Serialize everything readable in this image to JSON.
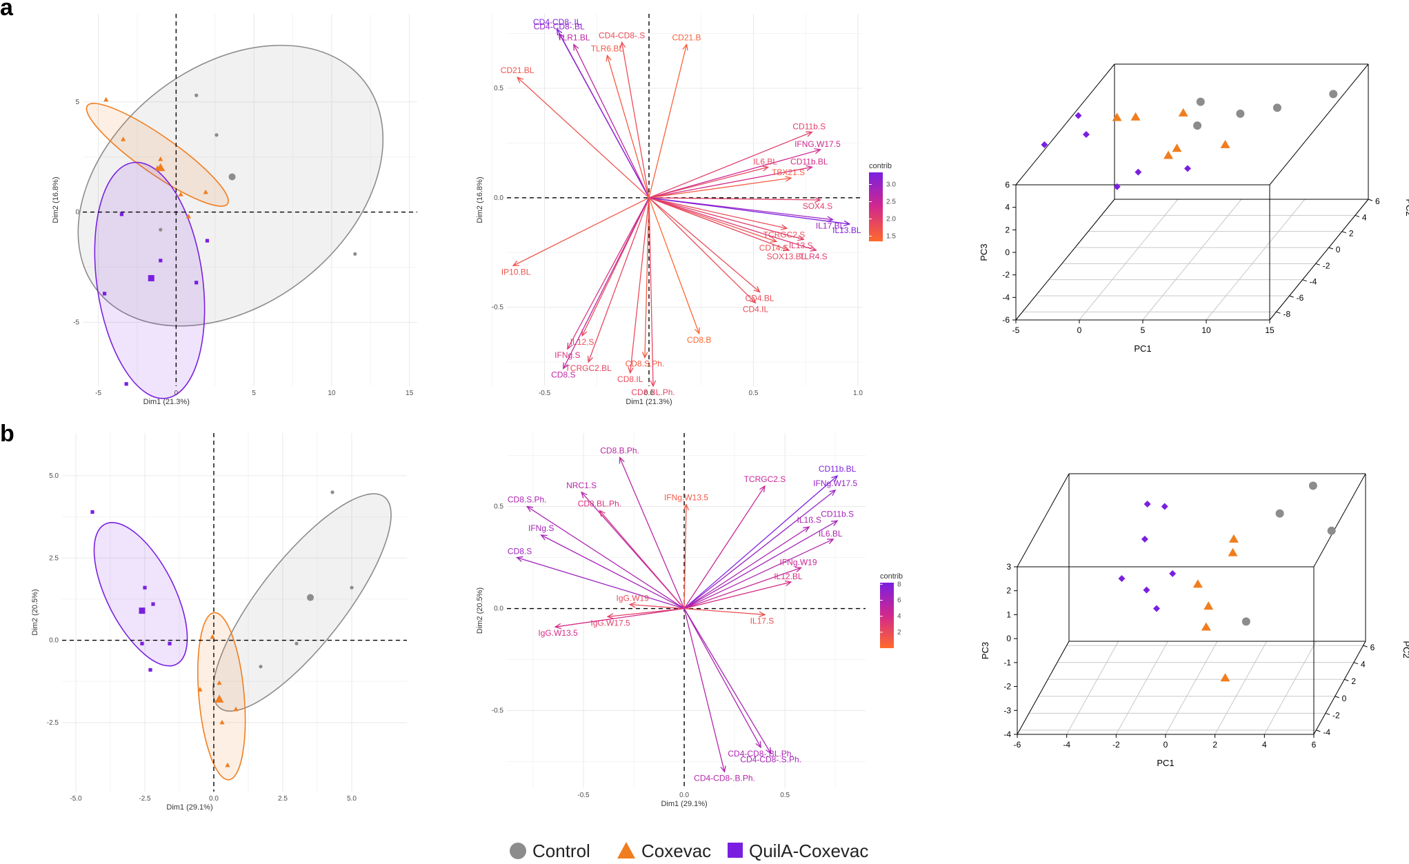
{
  "panel_labels": [
    "a",
    "b"
  ],
  "legend": {
    "items": [
      {
        "label": "Control",
        "color": "#8c8c8c",
        "shape": "circle"
      },
      {
        "label": "Coxevac",
        "color": "#f07d1e",
        "shape": "triangle"
      },
      {
        "label": "QuilA-Coxevac",
        "color": "#7a1fe0",
        "shape": "square"
      }
    ]
  },
  "colors": {
    "control": "#8c8c8c",
    "coxevac": "#f07d1e",
    "quila": "#7a1fe0",
    "contrib_low": "#ff6a2b",
    "contrib_high": "#7a1fe0"
  },
  "chart_data": [
    {
      "id": "a_individuals",
      "type": "scatter",
      "title": "",
      "xlabel": "Dim1 (21.3%)",
      "ylabel": "Dim2 (16.8%)",
      "xlim": [
        -6,
        15.5
      ],
      "ylim": [
        -7.9,
        9.0
      ],
      "xticks": [
        -5,
        0,
        5,
        10,
        15
      ],
      "yticks": [
        -5,
        0,
        5
      ],
      "xtick_labels": [
        "-5",
        "0",
        "5",
        "10",
        "15"
      ],
      "ytick_labels": [
        "-5",
        "0",
        "5"
      ],
      "grid": true,
      "series": [
        {
          "name": "Control",
          "marker": "circle",
          "points": [
            [
              1.3,
              5.3
            ],
            [
              2.6,
              3.5
            ],
            [
              3.6,
              1.6
            ],
            [
              -1,
              -0.8
            ],
            [
              1.3,
              -3.2
            ],
            [
              11.5,
              -1.9
            ]
          ],
          "centroid": [
            3.6,
            1.6
          ],
          "ellipse": {
            "cx": 3.5,
            "cy": 1.2,
            "rx": 10.9,
            "ry": 5.4,
            "angle_deg": 38
          }
        },
        {
          "name": "Coxevac",
          "marker": "triangle",
          "points": [
            [
              -4.5,
              5.1
            ],
            [
              -3.4,
              3.3
            ],
            [
              -1,
              2.4
            ],
            [
              -1.2,
              2
            ],
            [
              0.3,
              0.8
            ],
            [
              1.9,
              0.9
            ],
            [
              0.8,
              -0.2
            ]
          ],
          "centroid": [
            -1,
            2
          ],
          "ellipse": {
            "cx": -1.2,
            "cy": 2.6,
            "rx": 5.5,
            "ry": 0.85,
            "angle_deg": -35
          }
        },
        {
          "name": "QuilA-Coxevac",
          "marker": "square",
          "points": [
            [
              -3.5,
              -0.1
            ],
            [
              -1,
              -2.2
            ],
            [
              -1.6,
              -3
            ],
            [
              1.3,
              -3.2
            ],
            [
              2,
              -1.3
            ],
            [
              -4.6,
              -3.7
            ],
            [
              -3.2,
              -7.8
            ]
          ],
          "centroid": [
            -1.6,
            -3
          ],
          "ellipse": {
            "cx": -1.7,
            "cy": -3.1,
            "rx": 3.4,
            "ry": 5.4,
            "angle_deg": 8
          }
        }
      ]
    },
    {
      "id": "a_variables",
      "type": "biplot",
      "title": "",
      "xlabel": "Dim1 (21.3%)",
      "ylabel": "Dim2 (16.8%)",
      "xlim": [
        -0.68,
        1.02
      ],
      "ylim": [
        -0.86,
        0.84
      ],
      "xticks": [
        -0.5,
        0,
        0.5,
        1.0
      ],
      "yticks": [
        -0.5,
        0,
        0.5
      ],
      "xtick_labels": [
        "-0.5",
        "0.0",
        "0.5",
        "1.0"
      ],
      "ytick_labels": [
        "-0.5",
        "0.0",
        "0.5"
      ],
      "legend_title": "contrib",
      "legend_ticks": [
        3.0,
        2.5,
        2.0,
        1.5
      ],
      "legend_tick_labels": [
        "3.0",
        "2.5",
        "2.0",
        "1.5"
      ],
      "contrib_range": [
        1.35,
        3.35
      ],
      "vectors": [
        {
          "label": "CD4-CD8-.IL",
          "x": -0.44,
          "y": 0.77,
          "contrib": 3.3
        },
        {
          "label": "CD4-CD8-.BL",
          "x": -0.43,
          "y": 0.75,
          "contrib": 3.1
        },
        {
          "label": "TLR1.BL",
          "x": -0.36,
          "y": 0.7,
          "contrib": 2.6
        },
        {
          "label": "CD4-CD8-.S",
          "x": -0.13,
          "y": 0.71,
          "contrib": 1.8
        },
        {
          "label": "TLR6.BL",
          "x": -0.2,
          "y": 0.65,
          "contrib": 1.6
        },
        {
          "label": "CD21.B",
          "x": 0.18,
          "y": 0.7,
          "contrib": 1.5
        },
        {
          "label": "CD21.BL",
          "x": -0.63,
          "y": 0.55,
          "contrib": 1.7
        },
        {
          "label": "CD11b.S",
          "x": 0.78,
          "y": 0.3,
          "contrib": 2.0
        },
        {
          "label": "IFNG.W17.5",
          "x": 0.82,
          "y": 0.22,
          "contrib": 2.4
        },
        {
          "label": "IL6.BL",
          "x": 0.57,
          "y": 0.14,
          "contrib": 1.9
        },
        {
          "label": "CD11b.BL",
          "x": 0.78,
          "y": 0.14,
          "contrib": 2.3
        },
        {
          "label": "TBX21.S",
          "x": 0.68,
          "y": 0.09,
          "contrib": 1.6
        },
        {
          "label": "SOX4.S",
          "x": 0.82,
          "y": -0.01,
          "contrib": 2.0
        },
        {
          "label": "IL17.BL",
          "x": 0.88,
          "y": -0.1,
          "contrib": 3.0
        },
        {
          "label": "IL13.BL",
          "x": 0.96,
          "y": -0.12,
          "contrib": 3.3
        },
        {
          "label": "TCRGC2.S",
          "x": 0.66,
          "y": -0.14,
          "contrib": 1.8
        },
        {
          "label": "IL13.S",
          "x": 0.74,
          "y": -0.19,
          "contrib": 2.0
        },
        {
          "label": "CD14.S",
          "x": 0.61,
          "y": -0.2,
          "contrib": 1.7
        },
        {
          "label": "SOX13.BL",
          "x": 0.67,
          "y": -0.24,
          "contrib": 1.9
        },
        {
          "label": "TLR4.S",
          "x": 0.8,
          "y": -0.24,
          "contrib": 2.1
        },
        {
          "label": "CD4.BL",
          "x": 0.53,
          "y": -0.43,
          "contrib": 1.8
        },
        {
          "label": "CD4.IL",
          "x": 0.51,
          "y": -0.48,
          "contrib": 1.8
        },
        {
          "label": "CD8.B",
          "x": 0.24,
          "y": -0.62,
          "contrib": 1.4
        },
        {
          "label": "IP10.BL",
          "x": -0.65,
          "y": -0.31,
          "contrib": 1.7
        },
        {
          "label": "IL12.S",
          "x": -0.32,
          "y": -0.63,
          "contrib": 1.8
        },
        {
          "label": "IFNg.S",
          "x": -0.39,
          "y": -0.69,
          "contrib": 2.2
        },
        {
          "label": "TCRGC2.BL",
          "x": -0.29,
          "y": -0.75,
          "contrib": 1.9
        },
        {
          "label": "CD8.S",
          "x": -0.41,
          "y": -0.78,
          "contrib": 2.6
        },
        {
          "label": "CD8.IL",
          "x": -0.09,
          "y": -0.8,
          "contrib": 1.8
        },
        {
          "label": "CD8.S.Ph.",
          "x": -0.02,
          "y": -0.73,
          "contrib": 1.6
        },
        {
          "label": "CD8.BL.Ph.",
          "x": 0.02,
          "y": -0.86,
          "contrib": 1.9
        }
      ]
    },
    {
      "id": "a_pca3d",
      "type": "scatter3d",
      "xlabel": "PC1",
      "ylabel": "PC2",
      "zlabel": "PC3",
      "xticks": [
        -5,
        0,
        5,
        10,
        15
      ],
      "yticks": [
        -8,
        -6,
        -4,
        -2,
        0,
        2,
        4,
        6
      ],
      "zticks": [
        -6,
        -4,
        -2,
        0,
        2,
        4,
        6
      ],
      "xtick_labels": [
        "-5",
        "0",
        "5",
        "10",
        "15"
      ],
      "ytick_labels": [
        "-8",
        "-6",
        "-4",
        "-2",
        "0",
        "2",
        "4",
        "6"
      ],
      "ztick_labels": [
        "-6",
        "-4",
        "-2",
        "0",
        "2",
        "4",
        "6"
      ],
      "xlim": [
        -5,
        15
      ],
      "ylim": [
        -9,
        6
      ],
      "zlim": [
        -6,
        6
      ],
      "series": [
        {
          "name": "Control",
          "points": [
            [
              3.7,
              2.3,
              5.3
            ],
            [
              3.6,
              2.0,
              3.4
            ],
            [
              6.0,
              3.9,
              3.1
            ],
            [
              12.5,
              5.5,
              3.7
            ],
            [
              8.6,
              4.5,
              3.2
            ]
          ]
        },
        {
          "name": "Coxevac",
          "points": [
            [
              -1.8,
              0.2,
              5.4
            ],
            [
              -0.8,
              1.1,
              4.8
            ],
            [
              2.7,
              1.6,
              4.8
            ],
            [
              2.3,
              1.4,
              1.8
            ],
            [
              2.3,
              0.1,
              2.1
            ],
            [
              5.8,
              2.0,
              1.7
            ]
          ]
        },
        {
          "name": "QuilA-Coxevac",
          "points": [
            [
              -4.9,
              0.3,
              5.5
            ],
            [
              -3.5,
              -1.2,
              4.9
            ],
            [
              -7.0,
              -0.8,
              3.7
            ],
            [
              -0.6,
              -2.1,
              0.9
            ],
            [
              0.7,
              -1.4,
              1.7
            ],
            [
              4.8,
              -1.8,
              2.3
            ]
          ]
        }
      ]
    },
    {
      "id": "b_individuals",
      "type": "scatter",
      "title": "",
      "xlabel": "Dim1 (29.1%)",
      "ylabel": "Dim2 (20.5%)",
      "xlim": [
        -5.5,
        7.0
      ],
      "ylim": [
        -4.6,
        6.3
      ],
      "xticks": [
        -5,
        -2.5,
        0,
        2.5,
        5
      ],
      "yticks": [
        -2.5,
        0,
        2.5,
        5
      ],
      "xtick_labels": [
        "-5.0",
        "-2.5",
        "0.0",
        "2.5",
        "5.0"
      ],
      "ytick_labels": [
        "-2.5",
        "0.0",
        "2.5",
        "5.0"
      ],
      "grid": true,
      "series": [
        {
          "name": "Control",
          "marker": "circle",
          "points": [
            [
              4.3,
              4.5
            ],
            [
              5.0,
              1.6
            ],
            [
              3.5,
              1.3
            ],
            [
              3.0,
              -0.1
            ],
            [
              1.7,
              -0.8
            ]
          ],
          "centroid": [
            3.5,
            1.3
          ],
          "ellipse": {
            "cx": 3.2,
            "cy": 1.15,
            "rx": 4.85,
            "ry": 1.3,
            "angle_deg": 52
          }
        },
        {
          "name": "Coxevac",
          "marker": "triangle",
          "points": [
            [
              -0.5,
              -1.5
            ],
            [
              0.2,
              -1.3
            ],
            [
              0.2,
              -1.8
            ],
            [
              0.8,
              -2.1
            ],
            [
              0.3,
              -2.5
            ],
            [
              0.5,
              -3.8
            ],
            [
              -0.05,
              0.1
            ]
          ],
          "centroid": [
            0.2,
            -1.8
          ],
          "ellipse": {
            "cx": 0.28,
            "cy": -1.7,
            "rx": 0.82,
            "ry": 2.55,
            "angle_deg": 5
          }
        },
        {
          "name": "QuilA-Coxevac",
          "marker": "square",
          "points": [
            [
              -4.4,
              3.9
            ],
            [
              -2.5,
              1.6
            ],
            [
              -2.2,
              1.1
            ],
            [
              -2.6,
              0.9
            ],
            [
              -2.6,
              -0.1
            ],
            [
              -1.6,
              -0.1
            ],
            [
              -2.3,
              -0.9
            ]
          ],
          "centroid": [
            -2.6,
            0.9
          ],
          "ellipse": {
            "cx": -2.65,
            "cy": 1.4,
            "rx": 2.85,
            "ry": 1.02,
            "angle_deg": -63
          }
        }
      ]
    },
    {
      "id": "b_variables",
      "type": "biplot",
      "title": "",
      "xlabel": "Dim1 (29.1%)",
      "ylabel": "Dim2 (20.5%)",
      "xlim": [
        -0.88,
        0.9
      ],
      "ylim": [
        -0.88,
        0.86
      ],
      "xticks": [
        -0.5,
        0,
        0.5
      ],
      "yticks": [
        -0.5,
        0,
        0.5
      ],
      "xtick_labels": [
        "-0.5",
        "0.0",
        "0.5"
      ],
      "ytick_labels": [
        "-0.5",
        "0.0",
        "0.5"
      ],
      "legend_title": "contrib",
      "legend_ticks": [
        8,
        6,
        4,
        2
      ],
      "legend_tick_labels": [
        "8",
        "6",
        "4",
        "2"
      ],
      "contrib_range": [
        0,
        8.2
      ],
      "vectors": [
        {
          "label": "CD8.B.Ph.",
          "x": -0.32,
          "y": 0.74,
          "contrib": 5.2
        },
        {
          "label": "NRC1.S",
          "x": -0.51,
          "y": 0.57,
          "contrib": 5.5
        },
        {
          "label": "CD8.S.Ph.",
          "x": -0.78,
          "y": 0.5,
          "contrib": 5.9
        },
        {
          "label": "CD8.BL.Ph.",
          "x": -0.42,
          "y": 0.48,
          "contrib": 3.6
        },
        {
          "label": "IFNg.S",
          "x": -0.71,
          "y": 0.36,
          "contrib": 6.2
        },
        {
          "label": "CD8.S",
          "x": -0.83,
          "y": 0.25,
          "contrib": 6.5
        },
        {
          "label": "IFNg.W13.5",
          "x": 0.01,
          "y": 0.51,
          "contrib": 1.2
        },
        {
          "label": "TCRGC2.S",
          "x": 0.4,
          "y": 0.6,
          "contrib": 4.7
        },
        {
          "label": "CD11b.BL",
          "x": 0.76,
          "y": 0.65,
          "contrib": 8.0
        },
        {
          "label": "IFNg.W17.5",
          "x": 0.75,
          "y": 0.58,
          "contrib": 6.9
        },
        {
          "label": "IL1ß.S",
          "x": 0.62,
          "y": 0.4,
          "contrib": 5.8
        },
        {
          "label": "CD11b.S",
          "x": 0.76,
          "y": 0.43,
          "contrib": 6.3
        },
        {
          "label": "IL6.BL",
          "x": 0.74,
          "y": 0.34,
          "contrib": 5.7
        },
        {
          "label": "IFNg.W19",
          "x": 0.58,
          "y": 0.2,
          "contrib": 4.6
        },
        {
          "label": "IL12.BL",
          "x": 0.53,
          "y": 0.13,
          "contrib": 3.8
        },
        {
          "label": "IL17.S",
          "x": 0.4,
          "y": -0.03,
          "contrib": 1.6
        },
        {
          "label": "IgG.W19",
          "x": -0.27,
          "y": 0.02,
          "contrib": 2.0
        },
        {
          "label": "IgG.W17.5",
          "x": -0.38,
          "y": -0.04,
          "contrib": 2.6
        },
        {
          "label": "IgG.W13.5",
          "x": -0.64,
          "y": -0.09,
          "contrib": 3.9
        },
        {
          "label": "CD4-CD8-.BL.Ph.",
          "x": 0.38,
          "y": -0.68,
          "contrib": 5.9
        },
        {
          "label": "CD4-CD8-.S.Ph.",
          "x": 0.43,
          "y": -0.71,
          "contrib": 6.1
        },
        {
          "label": "CD4-CD8-.B.Ph.",
          "x": 0.2,
          "y": -0.8,
          "contrib": 5.5
        }
      ]
    },
    {
      "id": "b_pca3d",
      "type": "scatter3d",
      "xlabel": "PC1",
      "ylabel": "PC2",
      "zlabel": "PC3",
      "xticks": [
        -6,
        -4,
        -2,
        0,
        2,
        4,
        6
      ],
      "yticks": [
        -4,
        -2,
        0,
        2,
        4,
        6
      ],
      "zticks": [
        -4,
        -3,
        -2,
        -1,
        0,
        1,
        2,
        3
      ],
      "xtick_labels": [
        "-6",
        "-4",
        "-2",
        "0",
        "2",
        "4",
        "6"
      ],
      "ytick_labels": [
        "-4",
        "-2",
        "0",
        "2",
        "4",
        "6"
      ],
      "ztick_labels": [
        "-4",
        "-3",
        "-2",
        "-1",
        "0",
        "1",
        "2",
        "3"
      ],
      "xlim": [
        -6,
        6
      ],
      "ylim": [
        -4.5,
        6.5
      ],
      "zlim": [
        -4,
        3
      ],
      "series": [
        {
          "name": "Control",
          "points": [
            [
              4.2,
              4.8,
              3.1
            ],
            [
              3.1,
              3.5,
              2.4
            ],
            [
              5.1,
              4.0,
              1.5
            ],
            [
              2.5,
              -0.5,
              -0.7
            ]
          ]
        },
        {
          "name": "Coxevac",
          "points": [
            [
              1.6,
              1.6,
              2.0
            ],
            [
              1.6,
              1.4,
              1.5
            ],
            [
              0.3,
              0.8,
              0.4
            ],
            [
              0.9,
              -0.1,
              -0.2
            ],
            [
              0.9,
              -0.6,
              -0.9
            ],
            [
              1.9,
              -1.8,
              -2.6
            ]
          ]
        },
        {
          "name": "QuilA-Coxevac",
          "points": [
            [
              -2.2,
              3.2,
              2.9
            ],
            [
              -1.5,
              3.2,
              2.8
            ],
            [
              -2.0,
              1.6,
              2.0
            ],
            [
              -2.8,
              0.9,
              0.6
            ],
            [
              -1.7,
              0.4,
              0.3
            ],
            [
              -0.8,
              1.2,
              0.7
            ],
            [
              -1.2,
              -0.1,
              -0.3
            ]
          ]
        }
      ]
    }
  ]
}
